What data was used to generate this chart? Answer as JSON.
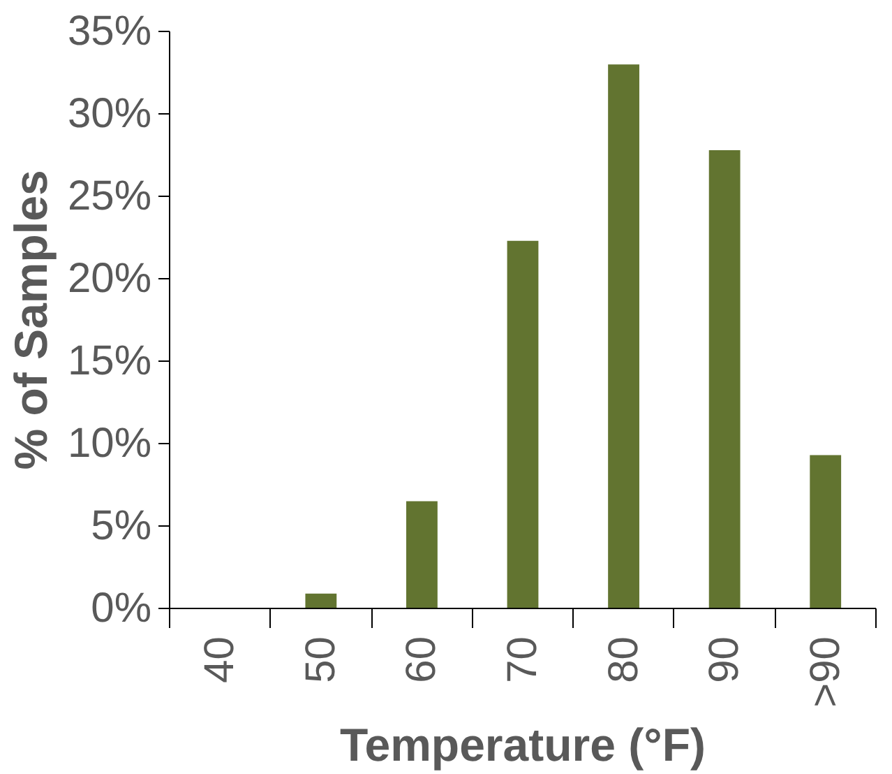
{
  "chart_data": {
    "type": "bar",
    "xlabel": "Temperature (°F)",
    "ylabel": "% of Samples",
    "categories": [
      "40",
      "50",
      "60",
      "70",
      "80",
      "90",
      ">90"
    ],
    "values": [
      0,
      0.9,
      6.5,
      22.3,
      33.0,
      27.8,
      9.3
    ],
    "color": "#627430",
    "ylim": [
      0,
      35
    ],
    "yticks": [
      {
        "value": 0,
        "label": "0%"
      },
      {
        "value": 5,
        "label": "5%"
      },
      {
        "value": 10,
        "label": "10%"
      },
      {
        "value": 15,
        "label": "15%"
      },
      {
        "value": 20,
        "label": "20%"
      },
      {
        "value": 25,
        "label": "25%"
      },
      {
        "value": 30,
        "label": "30%"
      },
      {
        "value": 35,
        "label": "35%"
      }
    ],
    "grid": false
  }
}
